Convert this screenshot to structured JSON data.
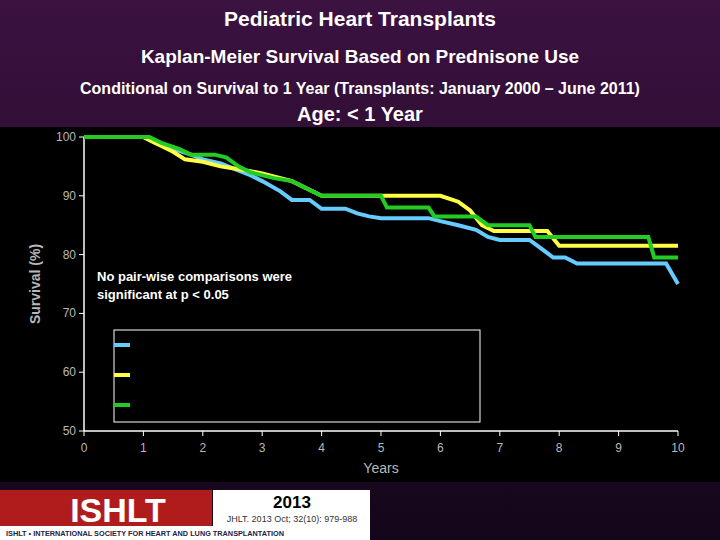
{
  "chart_data": {
    "type": "line",
    "title": "Pediatric Heart Transplants",
    "subtitle": [
      "Kaplan-Meier Survival Based on Prednisone Use",
      "Conditional on Survival to 1 Year (Transplants: January 2000 – June 2011)",
      "Age: < 1 Year"
    ],
    "x_label": "Years",
    "y_label": "Survival (%)",
    "annotation": [
      "No pair-wise comparisons were",
      "significant at p < 0.05"
    ],
    "xlim": [
      0,
      10
    ],
    "xticks": [
      0,
      1,
      2,
      3,
      4,
      5,
      6,
      7,
      8,
      9,
      10
    ],
    "ylim": [
      50,
      100
    ],
    "yticks": [
      50,
      60,
      70,
      80,
      90,
      100
    ],
    "grid": false,
    "legend": "bottom-left",
    "series": [
      {
        "color": "#66ccff",
        "x": [
          0,
          1,
          1.2,
          1.5,
          1.8,
          2,
          2.3,
          2.5,
          2.8,
          3,
          3.3,
          3.5,
          3.8,
          4,
          4.4,
          4.6,
          4.8,
          5,
          5.8,
          6,
          6.3,
          6.6,
          6.8,
          7,
          7.5,
          7.7,
          7.9,
          8.1,
          8.3,
          9.8,
          10
        ],
        "values": [
          100,
          100,
          99,
          98,
          97,
          96.2,
          95.5,
          94.7,
          93.5,
          92.5,
          90.8,
          89.3,
          89.3,
          87.8,
          87.8,
          87,
          86.5,
          86.2,
          86.2,
          85.7,
          85,
          84.2,
          83,
          82.5,
          82.5,
          81,
          79.5,
          79.5,
          78.5,
          78.5,
          75
        ]
      },
      {
        "color": "#ffff44",
        "x": [
          0,
          1,
          1.2,
          1.5,
          1.7,
          2,
          2.3,
          2.5,
          2.8,
          3,
          3.5,
          4,
          5.5,
          6,
          6.3,
          6.5,
          6.7,
          6.9,
          7.8,
          8,
          10
        ],
        "values": [
          100,
          100,
          99,
          97.5,
          96.2,
          95.8,
          95,
          94.7,
          94.2,
          93.8,
          92.5,
          90,
          90,
          90,
          89,
          87.5,
          85,
          84,
          84,
          81.5,
          81.5
        ]
      },
      {
        "color": "#22cc22",
        "x": [
          0,
          1.1,
          1.3,
          1.6,
          1.8,
          2.2,
          2.4,
          2.6,
          2.8,
          3.2,
          3.5,
          3.8,
          4,
          5,
          5.1,
          5.8,
          5.9,
          6.6,
          6.8,
          7.5,
          7.6,
          9.5,
          9.6,
          10
        ],
        "values": [
          100,
          100,
          99,
          98,
          97,
          97,
          96.5,
          95,
          94,
          93,
          92.5,
          91,
          90,
          90,
          88,
          88,
          86.5,
          86.5,
          85,
          85,
          83,
          83,
          79.5,
          79.5
        ]
      }
    ],
    "source": {
      "logo": "ISHLT",
      "society": "ISHLT • INTERNATIONAL SOCIETY FOR HEART AND LUNG TRANSPLANTATION",
      "year": "2013",
      "citation": "JHLT. 2013 Oct; 32(10): 979-988"
    }
  }
}
